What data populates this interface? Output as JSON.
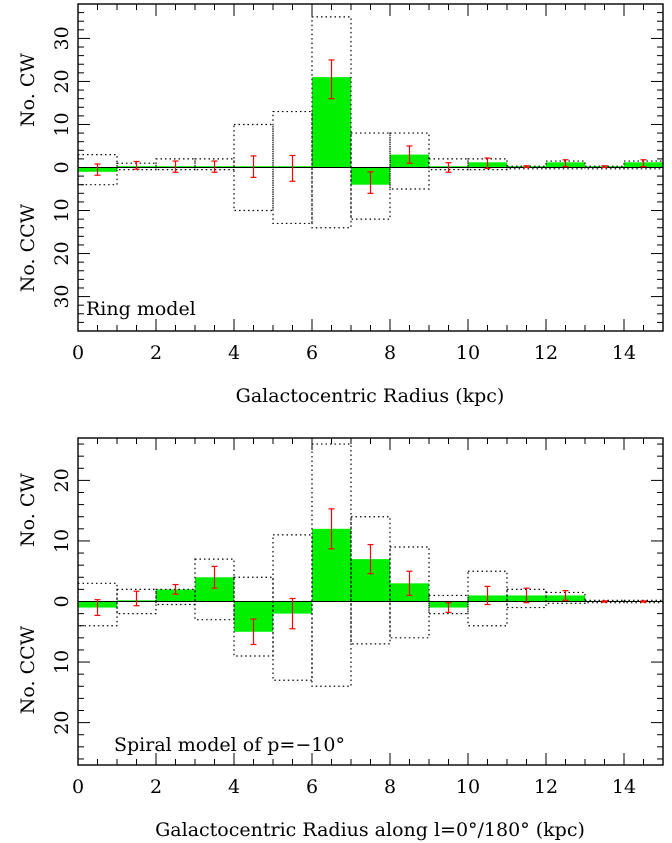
{
  "chart_data": [
    {
      "type": "bar",
      "subtype": "mirrored-histogram-with-error-bars",
      "annotation": "Ring model",
      "xlabel": "Galactocentric Radius (kpc)",
      "ylabel_upper": "No. CW",
      "ylabel_lower": "No. CCW",
      "xlim": [
        0,
        15
      ],
      "ylim": [
        -38,
        38
      ],
      "xticks": [
        0,
        2,
        4,
        6,
        8,
        10,
        12,
        14
      ],
      "yticks": [
        -30,
        -20,
        -10,
        0,
        10,
        20,
        30
      ],
      "ytick_labels": [
        "30",
        "20",
        "10",
        "0",
        "10",
        "20",
        "30"
      ],
      "bin_edges": [
        0,
        1,
        2,
        3,
        4,
        5,
        6,
        7,
        8,
        9,
        10,
        11,
        12,
        13,
        14,
        15
      ],
      "series": [
        {
          "name": "",
          "style": "filled-bar",
          "color": "#00f000",
          "values": [
            -1,
            0.3,
            0.3,
            0.3,
            0.3,
            0.3,
            21,
            -4,
            3,
            0.3,
            1.2,
            0.3,
            1.2,
            0.3,
            1.2
          ]
        },
        {
          "name": "",
          "style": "dotted-envelope-upper",
          "color": "#000000",
          "values": [
            3,
            1,
            2,
            2,
            10,
            13,
            35,
            8,
            8,
            2,
            2,
            0.3,
            1.5,
            0.3,
            1.5
          ]
        },
        {
          "name": "",
          "style": "dotted-envelope-lower",
          "color": "#000000",
          "values": [
            -4,
            -0.5,
            -0.5,
            -0.5,
            -10,
            -13,
            -14,
            -12,
            -5,
            -0.5,
            -0.5,
            -0.3,
            -0.3,
            -0.3,
            -0.3
          ]
        }
      ],
      "error_bars": {
        "color": "#ff0000",
        "x": [
          0.5,
          1.5,
          2.5,
          3.5,
          4.5,
          5.5,
          6.5,
          7.5,
          8.5,
          9.5,
          10.5,
          11.5,
          12.5,
          13.5,
          14.5
        ],
        "y": [
          -0.5,
          0.5,
          0.2,
          0.2,
          0.2,
          -0.2,
          20.5,
          -3.5,
          3,
          0,
          1,
          0.2,
          1,
          0.2,
          1
        ],
        "err": [
          1.3,
          0.9,
          1.3,
          1.3,
          2.5,
          3,
          4.5,
          2.5,
          2,
          1.1,
          1.2,
          0.2,
          0.8,
          0.2,
          0.8
        ]
      }
    },
    {
      "type": "bar",
      "subtype": "mirrored-histogram-with-error-bars",
      "annotation": "Spiral model of p=−10°",
      "xlabel": "Galactocentric Radius along l=0°/180° (kpc)",
      "ylabel_upper": "No. CW",
      "ylabel_lower": "No. CCW",
      "xlim": [
        0,
        15
      ],
      "ylim": [
        -27,
        27
      ],
      "xticks": [
        0,
        2,
        4,
        6,
        8,
        10,
        12,
        14
      ],
      "yticks": [
        -20,
        -10,
        0,
        10,
        20
      ],
      "ytick_labels": [
        "20",
        "10",
        "0",
        "10",
        "20"
      ],
      "bin_edges": [
        0,
        1,
        2,
        3,
        4,
        5,
        6,
        7,
        8,
        9,
        10,
        11,
        12,
        13,
        14,
        15
      ],
      "series": [
        {
          "name": "",
          "style": "filled-bar",
          "color": "#00f000",
          "values": [
            -1,
            0.2,
            2,
            4,
            -5,
            -2,
            12,
            7,
            3,
            -1,
            1,
            1,
            1,
            0.1,
            0.1
          ]
        },
        {
          "name": "",
          "style": "dotted-envelope-upper",
          "color": "#000000",
          "values": [
            3,
            2,
            2,
            7,
            4,
            11,
            26,
            14,
            9,
            1,
            5,
            2,
            1.5,
            0.2,
            0.2
          ]
        },
        {
          "name": "",
          "style": "dotted-envelope-lower",
          "color": "#000000",
          "values": [
            -4,
            -2,
            -0.5,
            -3,
            -9,
            -13,
            -14,
            -7,
            -6,
            -2,
            -4,
            -1,
            -0.3,
            -0.2,
            -0.2
          ]
        }
      ],
      "error_bars": {
        "color": "#ff0000",
        "x": [
          0.5,
          1.5,
          2.5,
          3.5,
          4.5,
          5.5,
          6.5,
          7.5,
          8.5,
          9.5,
          10.5,
          11.5,
          12.5,
          13.5,
          14.5
        ],
        "y": [
          -1,
          0.5,
          2,
          4,
          -5,
          -2,
          12,
          7,
          3,
          -1,
          1,
          1,
          1,
          0,
          0
        ],
        "err": [
          1.3,
          1.2,
          0.8,
          1.8,
          2.1,
          2.5,
          3.3,
          2.4,
          2,
          0.8,
          1.5,
          1.2,
          0.8,
          0.1,
          0.1
        ]
      }
    }
  ]
}
